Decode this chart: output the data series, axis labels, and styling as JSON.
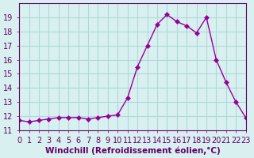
{
  "x": [
    0,
    1,
    2,
    3,
    4,
    5,
    6,
    7,
    8,
    9,
    10,
    11,
    12,
    13,
    14,
    15,
    16,
    17,
    18,
    19,
    20,
    21,
    22,
    23
  ],
  "y": [
    11.7,
    11.6,
    11.7,
    11.8,
    11.9,
    11.9,
    11.9,
    11.8,
    11.9,
    12.0,
    12.1,
    13.3,
    15.5,
    17.0,
    18.5,
    19.2,
    18.7,
    18.4,
    17.9,
    19.0,
    16.0,
    14.4,
    13.0,
    11.9
  ],
  "line_color": "#990099",
  "marker": "D",
  "marker_size": 3,
  "bg_color": "#d8f0f0",
  "grid_color": "#b0d8d8",
  "xlabel": "Windchill (Refroidissement éolien,°C)",
  "ylim": [
    11,
    20
  ],
  "xlim": [
    0,
    23
  ],
  "yticks": [
    11,
    12,
    13,
    14,
    15,
    16,
    17,
    18,
    19
  ],
  "xticks": [
    0,
    1,
    2,
    3,
    4,
    5,
    6,
    7,
    8,
    9,
    10,
    11,
    12,
    13,
    14,
    15,
    16,
    17,
    18,
    19,
    20,
    21,
    22,
    23
  ],
  "xlabel_fontsize": 7.5,
  "tick_fontsize": 7,
  "tick_color": "#660066",
  "axis_color": "#660066"
}
